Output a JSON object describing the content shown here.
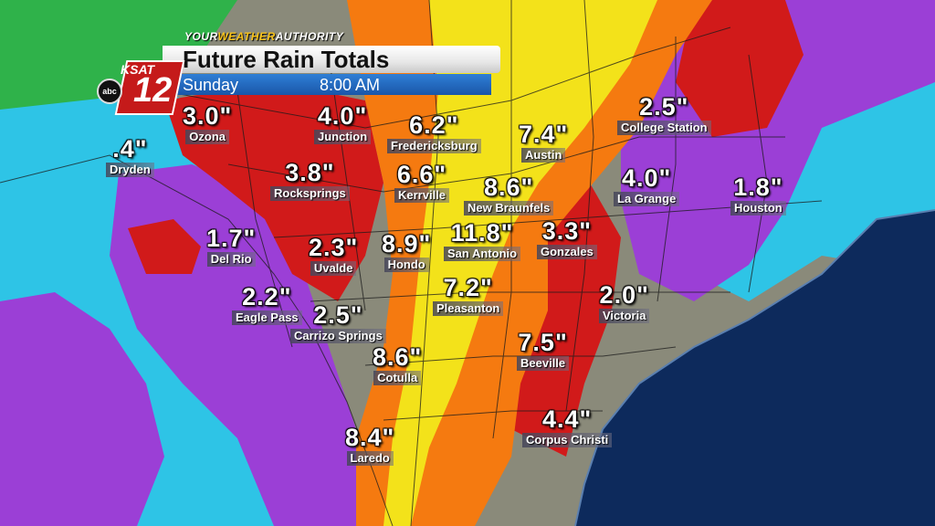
{
  "banner": {
    "brand_prefix": "YOUR",
    "brand_mid": "WEATHER",
    "brand_suffix": "AUTHORITY",
    "title": "Future Rain Totals",
    "day": "Sunday",
    "time": "8:00 AM",
    "station": "KSAT",
    "channel": "12",
    "network": "abc"
  },
  "colors": {
    "light": "#2fb24a",
    "moderate": "#2ec4e6",
    "heavy": "#9b3fd6",
    "very_heavy": "#d11a1a",
    "extreme": "#f57a10",
    "max": "#f3e21a",
    "gulf": "#0d2a5c"
  },
  "cities": [
    {
      "name": "Ozona",
      "amount": "3.0\""
    },
    {
      "name": "Junction",
      "amount": "4.0\""
    },
    {
      "name": "Fredericksburg",
      "amount": "6.2\""
    },
    {
      "name": "Austin",
      "amount": "7.4\""
    },
    {
      "name": "College Station",
      "amount": "2.5\""
    },
    {
      "name": "Dryden",
      "amount": ".4\""
    },
    {
      "name": "Rocksprings",
      "amount": "3.8\""
    },
    {
      "name": "Kerrville",
      "amount": "6.6\""
    },
    {
      "name": "New Braunfels",
      "amount": "8.6\""
    },
    {
      "name": "La Grange",
      "amount": "4.0\""
    },
    {
      "name": "Houston",
      "amount": "1.8\""
    },
    {
      "name": "Del Rio",
      "amount": "1.7\""
    },
    {
      "name": "Uvalde",
      "amount": "2.3\""
    },
    {
      "name": "Hondo",
      "amount": "8.9\""
    },
    {
      "name": "San Antonio",
      "amount": "11.8\""
    },
    {
      "name": "Gonzales",
      "amount": "3.3\""
    },
    {
      "name": "Eagle Pass",
      "amount": "2.2\""
    },
    {
      "name": "Carrizo Springs",
      "amount": "2.5\""
    },
    {
      "name": "Pleasanton",
      "amount": "7.2\""
    },
    {
      "name": "Victoria",
      "amount": "2.0\""
    },
    {
      "name": "Cotulla",
      "amount": "8.6\""
    },
    {
      "name": "Beeville",
      "amount": "7.5\""
    },
    {
      "name": "Corpus Christi",
      "amount": "4.4\""
    },
    {
      "name": "Laredo",
      "amount": "8.4\""
    }
  ]
}
